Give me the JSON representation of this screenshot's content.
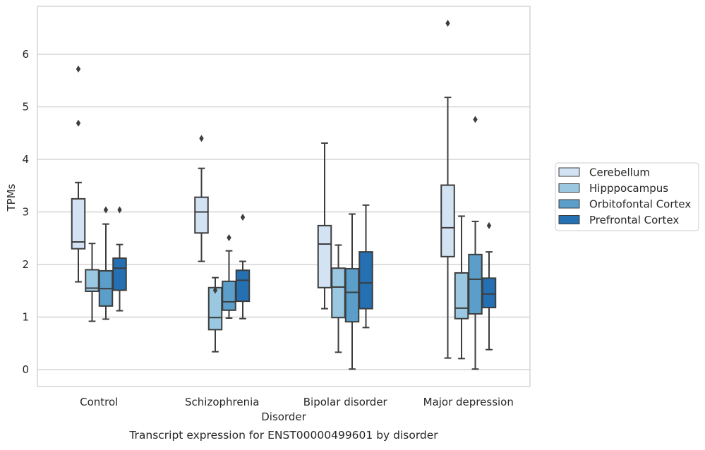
{
  "chart_data": {
    "type": "box",
    "title": "",
    "caption": "Transcript expression for ENST00000499601 by disorder",
    "xlabel": "Disorder",
    "ylabel": "TPMs",
    "ylim": [
      -0.32,
      6.9
    ],
    "yticks": [
      "0",
      "1",
      "2",
      "3",
      "4",
      "5",
      "6"
    ],
    "grid": true,
    "legend_position": "right",
    "categories": [
      "Control",
      "Schizophrenia",
      "Bipolar disorder",
      "Major depression"
    ],
    "series": [
      {
        "name": "Cerebellum",
        "color": "#d3e3f3",
        "boxes": [
          {
            "whisker_low": 1.67,
            "q1": 2.3,
            "median": 2.43,
            "q3": 3.25,
            "whisker_high": 3.56,
            "outliers": [
              5.72,
              4.69
            ]
          },
          {
            "whisker_low": 2.06,
            "q1": 2.6,
            "median": 3.0,
            "q3": 3.28,
            "whisker_high": 3.83,
            "outliers": [
              4.4
            ]
          },
          {
            "whisker_low": 1.16,
            "q1": 1.56,
            "median": 2.39,
            "q3": 2.74,
            "whisker_high": 4.31,
            "outliers": []
          },
          {
            "whisker_low": 0.22,
            "q1": 2.15,
            "median": 2.7,
            "q3": 3.51,
            "whisker_high": 5.18,
            "outliers": [
              6.59
            ]
          }
        ]
      },
      {
        "name": "Hipppocampus",
        "color": "#9ac8e0",
        "boxes": [
          {
            "whisker_low": 0.92,
            "q1": 1.49,
            "median": 1.55,
            "q3": 1.9,
            "whisker_high": 2.4,
            "outliers": []
          },
          {
            "whisker_low": 0.34,
            "q1": 0.76,
            "median": 0.99,
            "q3": 1.56,
            "whisker_high": 1.75,
            "outliers": [
              1.51
            ]
          },
          {
            "whisker_low": 0.33,
            "q1": 0.99,
            "median": 1.57,
            "q3": 1.93,
            "whisker_high": 2.37,
            "outliers": []
          },
          {
            "whisker_low": 0.21,
            "q1": 0.97,
            "median": 1.17,
            "q3": 1.84,
            "whisker_high": 2.92,
            "outliers": []
          }
        ]
      },
      {
        "name": "Orbitofontal Cortex",
        "color": "#5a9ec9",
        "boxes": [
          {
            "whisker_low": 0.96,
            "q1": 1.21,
            "median": 1.54,
            "q3": 1.88,
            "whisker_high": 2.77,
            "outliers": [
              3.04
            ]
          },
          {
            "whisker_low": 0.98,
            "q1": 1.13,
            "median": 1.29,
            "q3": 1.68,
            "whisker_high": 2.26,
            "outliers": [
              2.51
            ]
          },
          {
            "whisker_low": 0.01,
            "q1": 0.91,
            "median": 1.47,
            "q3": 1.92,
            "whisker_high": 2.96,
            "outliers": []
          },
          {
            "whisker_low": 0.01,
            "q1": 1.06,
            "median": 1.72,
            "q3": 2.19,
            "whisker_high": 2.82,
            "outliers": [
              4.76
            ]
          }
        ]
      },
      {
        "name": "Prefrontal Cortex",
        "color": "#2470b3",
        "boxes": [
          {
            "whisker_low": 1.12,
            "q1": 1.51,
            "median": 1.93,
            "q3": 2.12,
            "whisker_high": 2.38,
            "outliers": [
              3.04
            ]
          },
          {
            "whisker_low": 0.97,
            "q1": 1.3,
            "median": 1.7,
            "q3": 1.89,
            "whisker_high": 2.06,
            "outliers": [
              2.9
            ]
          },
          {
            "whisker_low": 0.8,
            "q1": 1.16,
            "median": 1.65,
            "q3": 2.24,
            "whisker_high": 3.13,
            "outliers": []
          },
          {
            "whisker_low": 0.38,
            "q1": 1.18,
            "median": 1.44,
            "q3": 1.74,
            "whisker_high": 2.24,
            "outliers": [
              2.74
            ]
          }
        ]
      }
    ]
  }
}
